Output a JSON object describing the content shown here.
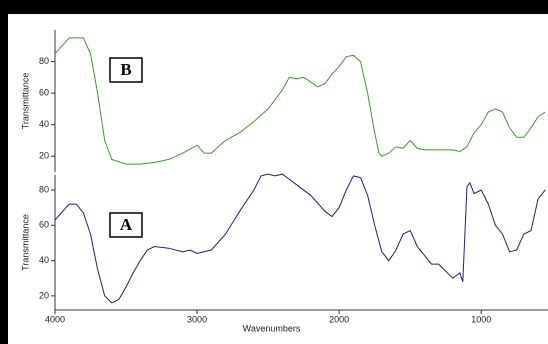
{
  "chart_data": [
    {
      "type": "line",
      "panel_label": "B",
      "ylabel": "Transmittance",
      "xlim": [
        4000,
        530
      ],
      "ylim": [
        10,
        100
      ],
      "yticks": [
        20,
        40,
        60,
        80
      ],
      "x": [
        4000,
        3900,
        3800,
        3750,
        3700,
        3650,
        3600,
        3500,
        3400,
        3300,
        3200,
        3100,
        3000,
        2950,
        2900,
        2800,
        2700,
        2600,
        2500,
        2400,
        2350,
        2300,
        2250,
        2200,
        2150,
        2100,
        2050,
        2000,
        1950,
        1900,
        1850,
        1800,
        1750,
        1720,
        1700,
        1650,
        1600,
        1550,
        1500,
        1450,
        1400,
        1300,
        1200,
        1150,
        1100,
        1050,
        1000,
        950,
        900,
        850,
        800,
        750,
        700,
        650,
        600,
        550
      ],
      "series": [
        {
          "color": "#3a9a2a",
          "values": [
            85,
            95,
            95,
            85,
            60,
            30,
            18,
            15,
            15,
            16,
            18,
            22,
            27,
            22,
            22,
            30,
            35,
            42,
            50,
            62,
            70,
            69,
            70,
            67,
            64,
            66,
            72,
            77,
            83,
            84,
            80,
            60,
            35,
            22,
            20,
            22,
            26,
            25,
            30,
            25,
            24,
            24,
            24,
            23,
            26,
            35,
            40,
            48,
            50,
            48,
            38,
            32,
            32,
            38,
            45,
            48
          ]
        }
      ]
    },
    {
      "type": "line",
      "panel_label": "A",
      "ylabel": "Transmittance",
      "xlabel": "Wavenumbers",
      "xlim": [
        4000,
        530
      ],
      "xticks": [
        4000,
        3000,
        2000,
        1000
      ],
      "ylim": [
        12,
        88.5
      ],
      "yticks": [
        20,
        40,
        60,
        80
      ],
      "x": [
        4000,
        3900,
        3850,
        3800,
        3750,
        3700,
        3650,
        3600,
        3550,
        3500,
        3450,
        3400,
        3350,
        3300,
        3200,
        3100,
        3050,
        3000,
        2900,
        2800,
        2700,
        2600,
        2550,
        2500,
        2450,
        2400,
        2350,
        2300,
        2200,
        2100,
        2050,
        2000,
        1950,
        1900,
        1850,
        1800,
        1750,
        1700,
        1650,
        1600,
        1550,
        1500,
        1450,
        1400,
        1350,
        1300,
        1250,
        1200,
        1150,
        1130,
        1100,
        1080,
        1050,
        1000,
        950,
        900,
        850,
        800,
        750,
        700,
        650,
        600,
        550
      ],
      "series": [
        {
          "color": "#1f1f7a",
          "values": [
            63,
            72,
            72,
            67,
            55,
            35,
            20,
            16,
            18,
            25,
            33,
            40,
            46,
            48,
            47,
            45,
            46,
            44,
            46,
            55,
            68,
            80,
            88,
            89,
            88,
            89,
            86,
            83,
            77,
            68,
            65,
            70,
            80,
            88,
            87,
            77,
            60,
            45,
            40,
            46,
            55,
            57,
            48,
            43,
            38,
            38,
            34,
            30,
            33,
            28,
            82,
            84,
            78,
            80,
            72,
            60,
            55,
            45,
            46,
            55,
            57,
            75,
            80
          ]
        }
      ]
    }
  ]
}
